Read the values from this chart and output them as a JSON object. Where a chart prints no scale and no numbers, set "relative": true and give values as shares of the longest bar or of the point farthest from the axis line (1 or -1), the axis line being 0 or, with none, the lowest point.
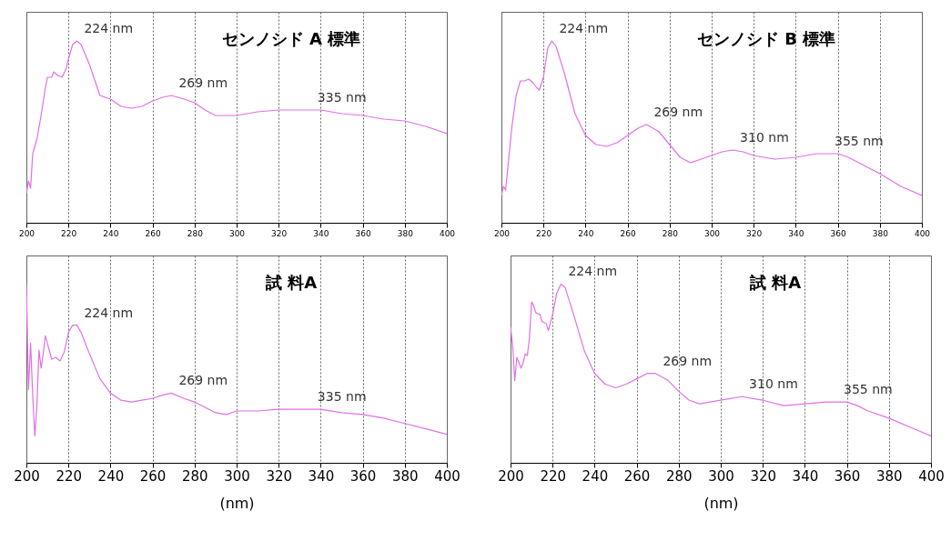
{
  "chart_data": [
    {
      "type": "line",
      "title": "センノシド A 標準",
      "relative": true,
      "grid": "x",
      "xlim": [
        200,
        400
      ],
      "xticks": [
        200,
        220,
        240,
        260,
        280,
        300,
        320,
        340,
        360,
        380,
        400
      ],
      "series": [
        {
          "color": "#e070e8",
          "x": [
            200,
            201,
            202,
            203,
            205,
            207,
            209,
            210,
            212,
            213,
            215,
            217,
            219,
            220,
            222,
            224,
            226,
            230,
            235,
            240,
            245,
            250,
            255,
            260,
            265,
            269,
            275,
            280,
            285,
            290,
            295,
            300,
            310,
            320,
            330,
            335,
            340,
            345,
            350,
            360,
            370,
            380,
            390,
            400
          ],
          "values": [
            0.16,
            0.23,
            0.19,
            0.38,
            0.46,
            0.59,
            0.74,
            0.8,
            0.8,
            0.83,
            0.81,
            0.8,
            0.85,
            0.9,
            0.98,
            1,
            0.98,
            0.87,
            0.7,
            0.68,
            0.64,
            0.63,
            0.64,
            0.67,
            0.69,
            0.7,
            0.68,
            0.66,
            0.62,
            0.59,
            0.59,
            0.59,
            0.61,
            0.62,
            0.62,
            0.62,
            0.62,
            0.61,
            0.6,
            0.59,
            0.57,
            0.56,
            0.53,
            0.49
          ]
        }
      ],
      "annotations": [
        {
          "text": "224 nm",
          "x": 224,
          "y": 1
        },
        {
          "text": "269 nm",
          "x": 269,
          "y": 0.7
        },
        {
          "text": "335 nm",
          "x": 335,
          "y": 0.62
        }
      ]
    },
    {
      "type": "line",
      "title": "センノシド B 標準",
      "relative": true,
      "grid": "x",
      "xlim": [
        200,
        400
      ],
      "xticks": [
        200,
        220,
        240,
        260,
        280,
        300,
        320,
        340,
        360,
        380,
        400
      ],
      "series": [
        {
          "color": "#e070e8",
          "x": [
            200,
            201,
            202,
            203,
            205,
            207,
            209,
            211,
            213,
            215,
            217,
            218,
            220,
            222,
            224,
            226,
            230,
            235,
            240,
            245,
            250,
            255,
            260,
            265,
            269,
            275,
            280,
            285,
            290,
            295,
            300,
            305,
            310,
            315,
            320,
            330,
            340,
            350,
            355,
            360,
            365,
            370,
            380,
            390,
            400
          ],
          "values": [
            0.15,
            0.2,
            0.18,
            0.3,
            0.53,
            0.7,
            0.78,
            0.78,
            0.79,
            0.77,
            0.74,
            0.73,
            0.8,
            0.96,
            1,
            0.97,
            0.82,
            0.6,
            0.48,
            0.43,
            0.42,
            0.44,
            0.48,
            0.52,
            0.54,
            0.5,
            0.43,
            0.36,
            0.33,
            0.35,
            0.37,
            0.39,
            0.4,
            0.39,
            0.37,
            0.35,
            0.36,
            0.38,
            0.38,
            0.38,
            0.36,
            0.33,
            0.27,
            0.2,
            0.15
          ]
        }
      ],
      "annotations": [
        {
          "text": "224 nm",
          "x": 224,
          "y": 1
        },
        {
          "text": "269 nm",
          "x": 269,
          "y": 0.54
        },
        {
          "text": "310 nm",
          "x": 310,
          "y": 0.4
        },
        {
          "text": "355 nm",
          "x": 355,
          "y": 0.38
        }
      ]
    },
    {
      "type": "line",
      "title": "試 料A",
      "xlabel": "(nm)",
      "relative": true,
      "grid": "x",
      "xlim": [
        200,
        400
      ],
      "xticks": [
        200,
        220,
        240,
        260,
        280,
        300,
        320,
        340,
        360,
        380,
        400
      ],
      "series": [
        {
          "color": "#e070e8",
          "x": [
            200,
            201,
            202,
            203,
            204,
            205,
            206,
            207,
            208,
            209,
            210,
            212,
            214,
            216,
            218,
            220,
            222,
            224,
            226,
            230,
            235,
            240,
            245,
            250,
            255,
            260,
            265,
            269,
            275,
            280,
            285,
            290,
            295,
            300,
            310,
            320,
            330,
            335,
            340,
            350,
            360,
            370,
            380,
            390,
            400
          ],
          "values": [
            1,
            0.41,
            0.67,
            0.38,
            0.15,
            0.32,
            0.63,
            0.53,
            0.61,
            0.71,
            0.67,
            0.58,
            0.59,
            0.57,
            0.62,
            0.73,
            0.77,
            0.77,
            0.73,
            0.61,
            0.47,
            0.39,
            0.35,
            0.34,
            0.35,
            0.36,
            0.38,
            0.39,
            0.36,
            0.34,
            0.31,
            0.28,
            0.27,
            0.29,
            0.29,
            0.3,
            0.3,
            0.3,
            0.3,
            0.28,
            0.27,
            0.25,
            0.22,
            0.19,
            0.16
          ]
        }
      ],
      "annotations": [
        {
          "text": "224 nm",
          "x": 224,
          "y": 0.77
        },
        {
          "text": "269 nm",
          "x": 269,
          "y": 0.39
        },
        {
          "text": "335 nm",
          "x": 335,
          "y": 0.3
        }
      ]
    },
    {
      "type": "line",
      "title": "試 料A",
      "xlabel": "(nm)",
      "relative": true,
      "grid": "x",
      "xlim": [
        200,
        400
      ],
      "xticks": [
        200,
        220,
        240,
        260,
        280,
        300,
        320,
        340,
        360,
        380,
        400
      ],
      "series": [
        {
          "color": "#e070e8",
          "x": [
            200,
            201,
            202,
            203,
            205,
            206,
            207,
            208,
            209,
            210,
            211,
            212,
            214,
            215,
            217,
            218,
            220,
            222,
            224,
            226,
            230,
            235,
            240,
            245,
            250,
            255,
            260,
            265,
            269,
            275,
            280,
            285,
            290,
            295,
            300,
            310,
            320,
            330,
            340,
            350,
            360,
            365,
            370,
            380,
            390,
            400
          ],
          "values": [
            0.76,
            0.66,
            0.46,
            0.59,
            0.53,
            0.56,
            0.61,
            0.6,
            0.7,
            0.9,
            0.88,
            0.84,
            0.83,
            0.79,
            0.78,
            0.74,
            0.83,
            0.95,
            1,
            0.98,
            0.83,
            0.63,
            0.5,
            0.44,
            0.42,
            0.44,
            0.47,
            0.5,
            0.5,
            0.46,
            0.4,
            0.35,
            0.33,
            0.34,
            0.35,
            0.37,
            0.35,
            0.32,
            0.33,
            0.34,
            0.34,
            0.32,
            0.29,
            0.25,
            0.2,
            0.15
          ]
        }
      ],
      "annotations": [
        {
          "text": "224 nm",
          "x": 224,
          "y": 1
        },
        {
          "text": "269 nm",
          "x": 269,
          "y": 0.5
        },
        {
          "text": "310 nm",
          "x": 310,
          "y": 0.37
        },
        {
          "text": "355 nm",
          "x": 355,
          "y": 0.34
        }
      ]
    }
  ]
}
